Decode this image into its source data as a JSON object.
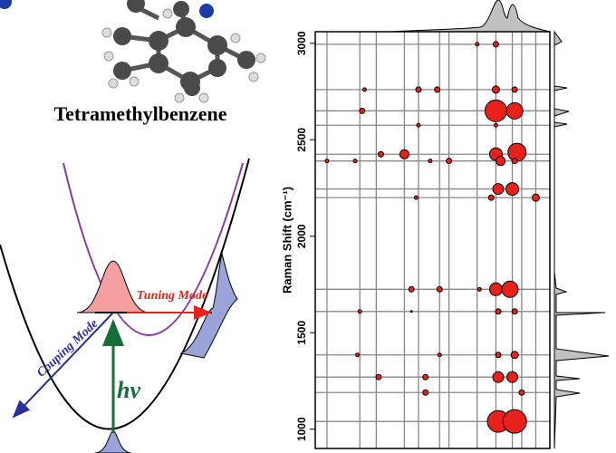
{
  "molecule_label": "Tetramethylbenzene",
  "diagram": {
    "tuning_mode": "Tuning Mode",
    "coupling_mode": "Couping Mode",
    "excitation": "hν"
  },
  "chart_data": {
    "type": "bubble",
    "y_label": "Raman Shift (cm⁻¹)",
    "ylim": [
      900,
      3060
    ],
    "yticks": [
      1000,
      1500,
      2000,
      2500,
      3000
    ],
    "xlim": [
      0,
      100
    ],
    "grid_x": [
      5,
      19,
      26,
      38,
      44,
      53,
      57,
      69,
      77,
      84,
      88,
      94
    ],
    "grid_y": [
      2995,
      2760,
      2650,
      2575,
      2425,
      2390,
      2245,
      2200,
      1725,
      1610,
      1385,
      1270,
      1190,
      1040
    ],
    "color": "#e8211c",
    "x": [
      69,
      77,
      21,
      44,
      52,
      77,
      85,
      20,
      77,
      85,
      44,
      77,
      28,
      38,
      77,
      86,
      5,
      17,
      49,
      57,
      79,
      85,
      78,
      84,
      43,
      75,
      94,
      41,
      53,
      70,
      77,
      83,
      19,
      41,
      78,
      85,
      18,
      53,
      78,
      85,
      27,
      47,
      78,
      84,
      47,
      88,
      78,
      85
    ],
    "y": [
      2995,
      2995,
      2760,
      2760,
      2760,
      2760,
      2760,
      2650,
      2650,
      2650,
      2575,
      2575,
      2425,
      2425,
      2425,
      2435,
      2390,
      2390,
      2390,
      2390,
      2390,
      2390,
      2245,
      2245,
      2200,
      2200,
      2200,
      1725,
      1725,
      1725,
      1725,
      1725,
      1610,
      1610,
      1610,
      1610,
      1385,
      1385,
      1385,
      1385,
      1270,
      1270,
      1270,
      1270,
      1190,
      1190,
      1040,
      1040
    ],
    "sizes": [
      2,
      3,
      2,
      3,
      3,
      4,
      3,
      3,
      12,
      9,
      2,
      2,
      3,
      5,
      7,
      10,
      2,
      2,
      2,
      3,
      5,
      3,
      6,
      7,
      2,
      3,
      4,
      3,
      3,
      2,
      7,
      9,
      2,
      1,
      3,
      3,
      2,
      2,
      3,
      4,
      3,
      3,
      6,
      6,
      3,
      3,
      12,
      13
    ]
  }
}
